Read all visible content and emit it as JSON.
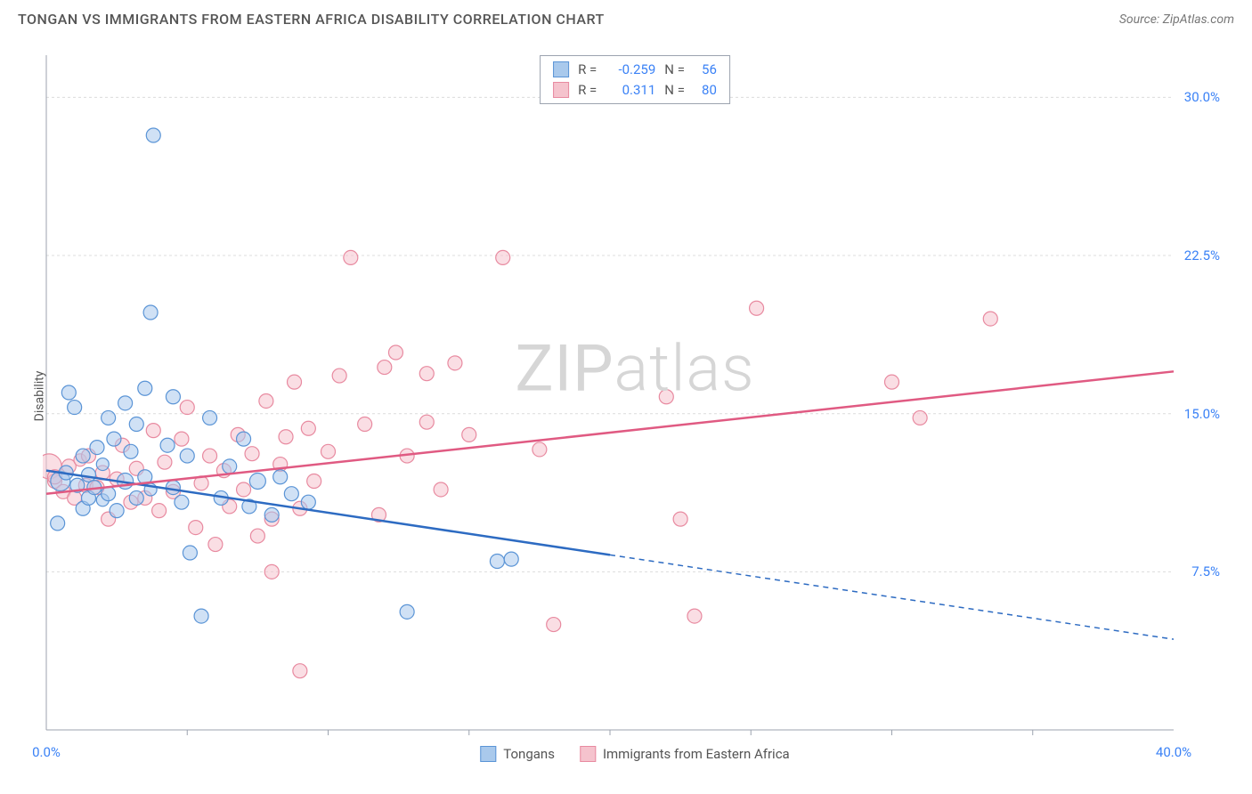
{
  "header": {
    "title": "TONGAN VS IMMIGRANTS FROM EASTERN AFRICA DISABILITY CORRELATION CHART",
    "source": "Source: ZipAtlas.com"
  },
  "chart": {
    "type": "scatter",
    "ylabel": "Disability",
    "watermark_prefix": "ZIP",
    "watermark_suffix": "atlas",
    "xlim": [
      0,
      40
    ],
    "ylim": [
      0,
      32
    ],
    "x_ticks": [
      {
        "val": 0,
        "label": "0.0%"
      },
      {
        "val": 40,
        "label": "40.0%"
      }
    ],
    "x_minor_ticks": [
      5,
      10,
      15,
      20,
      25,
      30,
      35
    ],
    "y_ticks": [
      {
        "val": 7.5,
        "label": "7.5%"
      },
      {
        "val": 15.0,
        "label": "15.0%"
      },
      {
        "val": 22.5,
        "label": "22.5%"
      },
      {
        "val": 30.0,
        "label": "30.0%"
      }
    ],
    "background_color": "#ffffff",
    "grid_color": "#dcdcdc",
    "axis_color": "#9ca3af",
    "series": [
      {
        "name": "Tongans",
        "fill": "#a9c9ec",
        "stroke": "#5a94d6",
        "line_color": "#2d6bc2",
        "reg_start": {
          "x": 0,
          "y": 12.3
        },
        "reg_end_solid": {
          "x": 20,
          "y": 8.3
        },
        "reg_end_dash": {
          "x": 40,
          "y": 4.3
        },
        "r": -0.259,
        "n": 56,
        "points": [
          {
            "x": 0.4,
            "y": 9.8,
            "r": 8
          },
          {
            "x": 0.5,
            "y": 11.8,
            "r": 11
          },
          {
            "x": 0.7,
            "y": 12.2,
            "r": 8
          },
          {
            "x": 0.8,
            "y": 16.0,
            "r": 8
          },
          {
            "x": 1.0,
            "y": 15.3,
            "r": 8
          },
          {
            "x": 1.1,
            "y": 11.6,
            "r": 8
          },
          {
            "x": 1.3,
            "y": 10.5,
            "r": 8
          },
          {
            "x": 1.3,
            "y": 13.0,
            "r": 8
          },
          {
            "x": 1.5,
            "y": 11.0,
            "r": 8
          },
          {
            "x": 1.5,
            "y": 12.1,
            "r": 8
          },
          {
            "x": 1.7,
            "y": 11.5,
            "r": 8
          },
          {
            "x": 1.8,
            "y": 13.4,
            "r": 8
          },
          {
            "x": 2.0,
            "y": 10.9,
            "r": 7
          },
          {
            "x": 2.0,
            "y": 12.6,
            "r": 7
          },
          {
            "x": 2.2,
            "y": 14.8,
            "r": 8
          },
          {
            "x": 2.2,
            "y": 11.2,
            "r": 8
          },
          {
            "x": 2.4,
            "y": 13.8,
            "r": 8
          },
          {
            "x": 2.5,
            "y": 10.4,
            "r": 8
          },
          {
            "x": 2.8,
            "y": 11.8,
            "r": 9
          },
          {
            "x": 2.8,
            "y": 15.5,
            "r": 8
          },
          {
            "x": 3.0,
            "y": 13.2,
            "r": 8
          },
          {
            "x": 3.2,
            "y": 11.0,
            "r": 8
          },
          {
            "x": 3.2,
            "y": 14.5,
            "r": 8
          },
          {
            "x": 3.5,
            "y": 16.2,
            "r": 8
          },
          {
            "x": 3.5,
            "y": 12.0,
            "r": 8
          },
          {
            "x": 3.7,
            "y": 11.4,
            "r": 7
          },
          {
            "x": 3.7,
            "y": 19.8,
            "r": 8
          },
          {
            "x": 3.8,
            "y": 28.2,
            "r": 8
          },
          {
            "x": 4.3,
            "y": 13.5,
            "r": 8
          },
          {
            "x": 4.5,
            "y": 11.5,
            "r": 8
          },
          {
            "x": 4.5,
            "y": 15.8,
            "r": 8
          },
          {
            "x": 4.8,
            "y": 10.8,
            "r": 8
          },
          {
            "x": 5.0,
            "y": 13.0,
            "r": 8
          },
          {
            "x": 5.1,
            "y": 8.4,
            "r": 8
          },
          {
            "x": 5.5,
            "y": 5.4,
            "r": 8
          },
          {
            "x": 5.8,
            "y": 14.8,
            "r": 8
          },
          {
            "x": 6.2,
            "y": 11.0,
            "r": 8
          },
          {
            "x": 6.5,
            "y": 12.5,
            "r": 8
          },
          {
            "x": 7.0,
            "y": 13.8,
            "r": 8
          },
          {
            "x": 7.2,
            "y": 10.6,
            "r": 8
          },
          {
            "x": 7.5,
            "y": 11.8,
            "r": 9
          },
          {
            "x": 8.0,
            "y": 10.2,
            "r": 8
          },
          {
            "x": 8.3,
            "y": 12.0,
            "r": 8
          },
          {
            "x": 8.7,
            "y": 11.2,
            "r": 8
          },
          {
            "x": 9.3,
            "y": 10.8,
            "r": 8
          },
          {
            "x": 12.8,
            "y": 5.6,
            "r": 8
          },
          {
            "x": 16.0,
            "y": 8.0,
            "r": 8
          },
          {
            "x": 16.5,
            "y": 8.1,
            "r": 8
          }
        ]
      },
      {
        "name": "Immigrants from Eastern Africa",
        "fill": "#f5c3cd",
        "stroke": "#e88aa0",
        "line_color": "#e05a82",
        "reg_start": {
          "x": 0,
          "y": 11.2
        },
        "reg_end_solid": {
          "x": 40,
          "y": 17.0
        },
        "reg_end_dash": null,
        "r": 0.311,
        "n": 80,
        "points": [
          {
            "x": 0.1,
            "y": 12.5,
            "r": 14
          },
          {
            "x": 0.3,
            "y": 11.8,
            "r": 8
          },
          {
            "x": 0.3,
            "y": 12.0,
            "r": 8
          },
          {
            "x": 0.6,
            "y": 11.3,
            "r": 8
          },
          {
            "x": 0.8,
            "y": 12.5,
            "r": 8
          },
          {
            "x": 1.0,
            "y": 11.0,
            "r": 8
          },
          {
            "x": 1.2,
            "y": 12.8,
            "r": 7
          },
          {
            "x": 1.4,
            "y": 11.6,
            "r": 8
          },
          {
            "x": 1.5,
            "y": 13.0,
            "r": 8
          },
          {
            "x": 1.8,
            "y": 11.5,
            "r": 8
          },
          {
            "x": 2.0,
            "y": 12.2,
            "r": 8
          },
          {
            "x": 2.2,
            "y": 10.0,
            "r": 8
          },
          {
            "x": 2.5,
            "y": 11.9,
            "r": 8
          },
          {
            "x": 2.7,
            "y": 13.5,
            "r": 8
          },
          {
            "x": 3.0,
            "y": 10.8,
            "r": 8
          },
          {
            "x": 3.2,
            "y": 12.4,
            "r": 8
          },
          {
            "x": 3.5,
            "y": 11.0,
            "r": 8
          },
          {
            "x": 3.8,
            "y": 14.2,
            "r": 8
          },
          {
            "x": 4.0,
            "y": 10.4,
            "r": 8
          },
          {
            "x": 4.2,
            "y": 12.7,
            "r": 8
          },
          {
            "x": 4.5,
            "y": 11.3,
            "r": 8
          },
          {
            "x": 4.8,
            "y": 13.8,
            "r": 8
          },
          {
            "x": 5.0,
            "y": 15.3,
            "r": 8
          },
          {
            "x": 5.3,
            "y": 9.6,
            "r": 8
          },
          {
            "x": 5.5,
            "y": 11.7,
            "r": 8
          },
          {
            "x": 5.8,
            "y": 13.0,
            "r": 8
          },
          {
            "x": 6.0,
            "y": 8.8,
            "r": 8
          },
          {
            "x": 6.3,
            "y": 12.3,
            "r": 8
          },
          {
            "x": 6.5,
            "y": 10.6,
            "r": 8
          },
          {
            "x": 6.8,
            "y": 14.0,
            "r": 8
          },
          {
            "x": 7.0,
            "y": 11.4,
            "r": 8
          },
          {
            "x": 7.3,
            "y": 13.1,
            "r": 8
          },
          {
            "x": 7.5,
            "y": 9.2,
            "r": 8
          },
          {
            "x": 7.8,
            "y": 15.6,
            "r": 8
          },
          {
            "x": 8.0,
            "y": 10.0,
            "r": 8
          },
          {
            "x": 8.0,
            "y": 7.5,
            "r": 8
          },
          {
            "x": 8.3,
            "y": 12.6,
            "r": 8
          },
          {
            "x": 8.5,
            "y": 13.9,
            "r": 8
          },
          {
            "x": 8.8,
            "y": 16.5,
            "r": 8
          },
          {
            "x": 9.0,
            "y": 10.5,
            "r": 8
          },
          {
            "x": 9.0,
            "y": 2.8,
            "r": 8
          },
          {
            "x": 9.3,
            "y": 14.3,
            "r": 8
          },
          {
            "x": 9.5,
            "y": 11.8,
            "r": 8
          },
          {
            "x": 10.0,
            "y": 13.2,
            "r": 8
          },
          {
            "x": 10.4,
            "y": 16.8,
            "r": 8
          },
          {
            "x": 10.8,
            "y": 22.4,
            "r": 8
          },
          {
            "x": 11.3,
            "y": 14.5,
            "r": 8
          },
          {
            "x": 11.8,
            "y": 10.2,
            "r": 8
          },
          {
            "x": 12.0,
            "y": 17.2,
            "r": 8
          },
          {
            "x": 12.4,
            "y": 17.9,
            "r": 8
          },
          {
            "x": 12.8,
            "y": 13.0,
            "r": 8
          },
          {
            "x": 13.5,
            "y": 16.9,
            "r": 8
          },
          {
            "x": 13.5,
            "y": 14.6,
            "r": 8
          },
          {
            "x": 14.0,
            "y": 11.4,
            "r": 8
          },
          {
            "x": 14.5,
            "y": 17.4,
            "r": 8
          },
          {
            "x": 15.0,
            "y": 14.0,
            "r": 8
          },
          {
            "x": 16.2,
            "y": 22.4,
            "r": 8
          },
          {
            "x": 17.5,
            "y": 13.3,
            "r": 8
          },
          {
            "x": 18.0,
            "y": 5.0,
            "r": 8
          },
          {
            "x": 22.0,
            "y": 15.8,
            "r": 8
          },
          {
            "x": 22.5,
            "y": 10.0,
            "r": 8
          },
          {
            "x": 23.0,
            "y": 5.4,
            "r": 8
          },
          {
            "x": 25.2,
            "y": 20.0,
            "r": 8
          },
          {
            "x": 30.0,
            "y": 16.5,
            "r": 8
          },
          {
            "x": 31.0,
            "y": 14.8,
            "r": 8
          },
          {
            "x": 33.5,
            "y": 19.5,
            "r": 8
          }
        ]
      }
    ],
    "stats_box": {
      "r_label": "R =",
      "n_label": "N ="
    },
    "legend_items": [
      {
        "label": "Tongans",
        "swatch_fill": "#a9c9ec",
        "swatch_stroke": "#5a94d6"
      },
      {
        "label": "Immigrants from Eastern Africa",
        "swatch_fill": "#f5c3cd",
        "swatch_stroke": "#e88aa0"
      }
    ]
  }
}
